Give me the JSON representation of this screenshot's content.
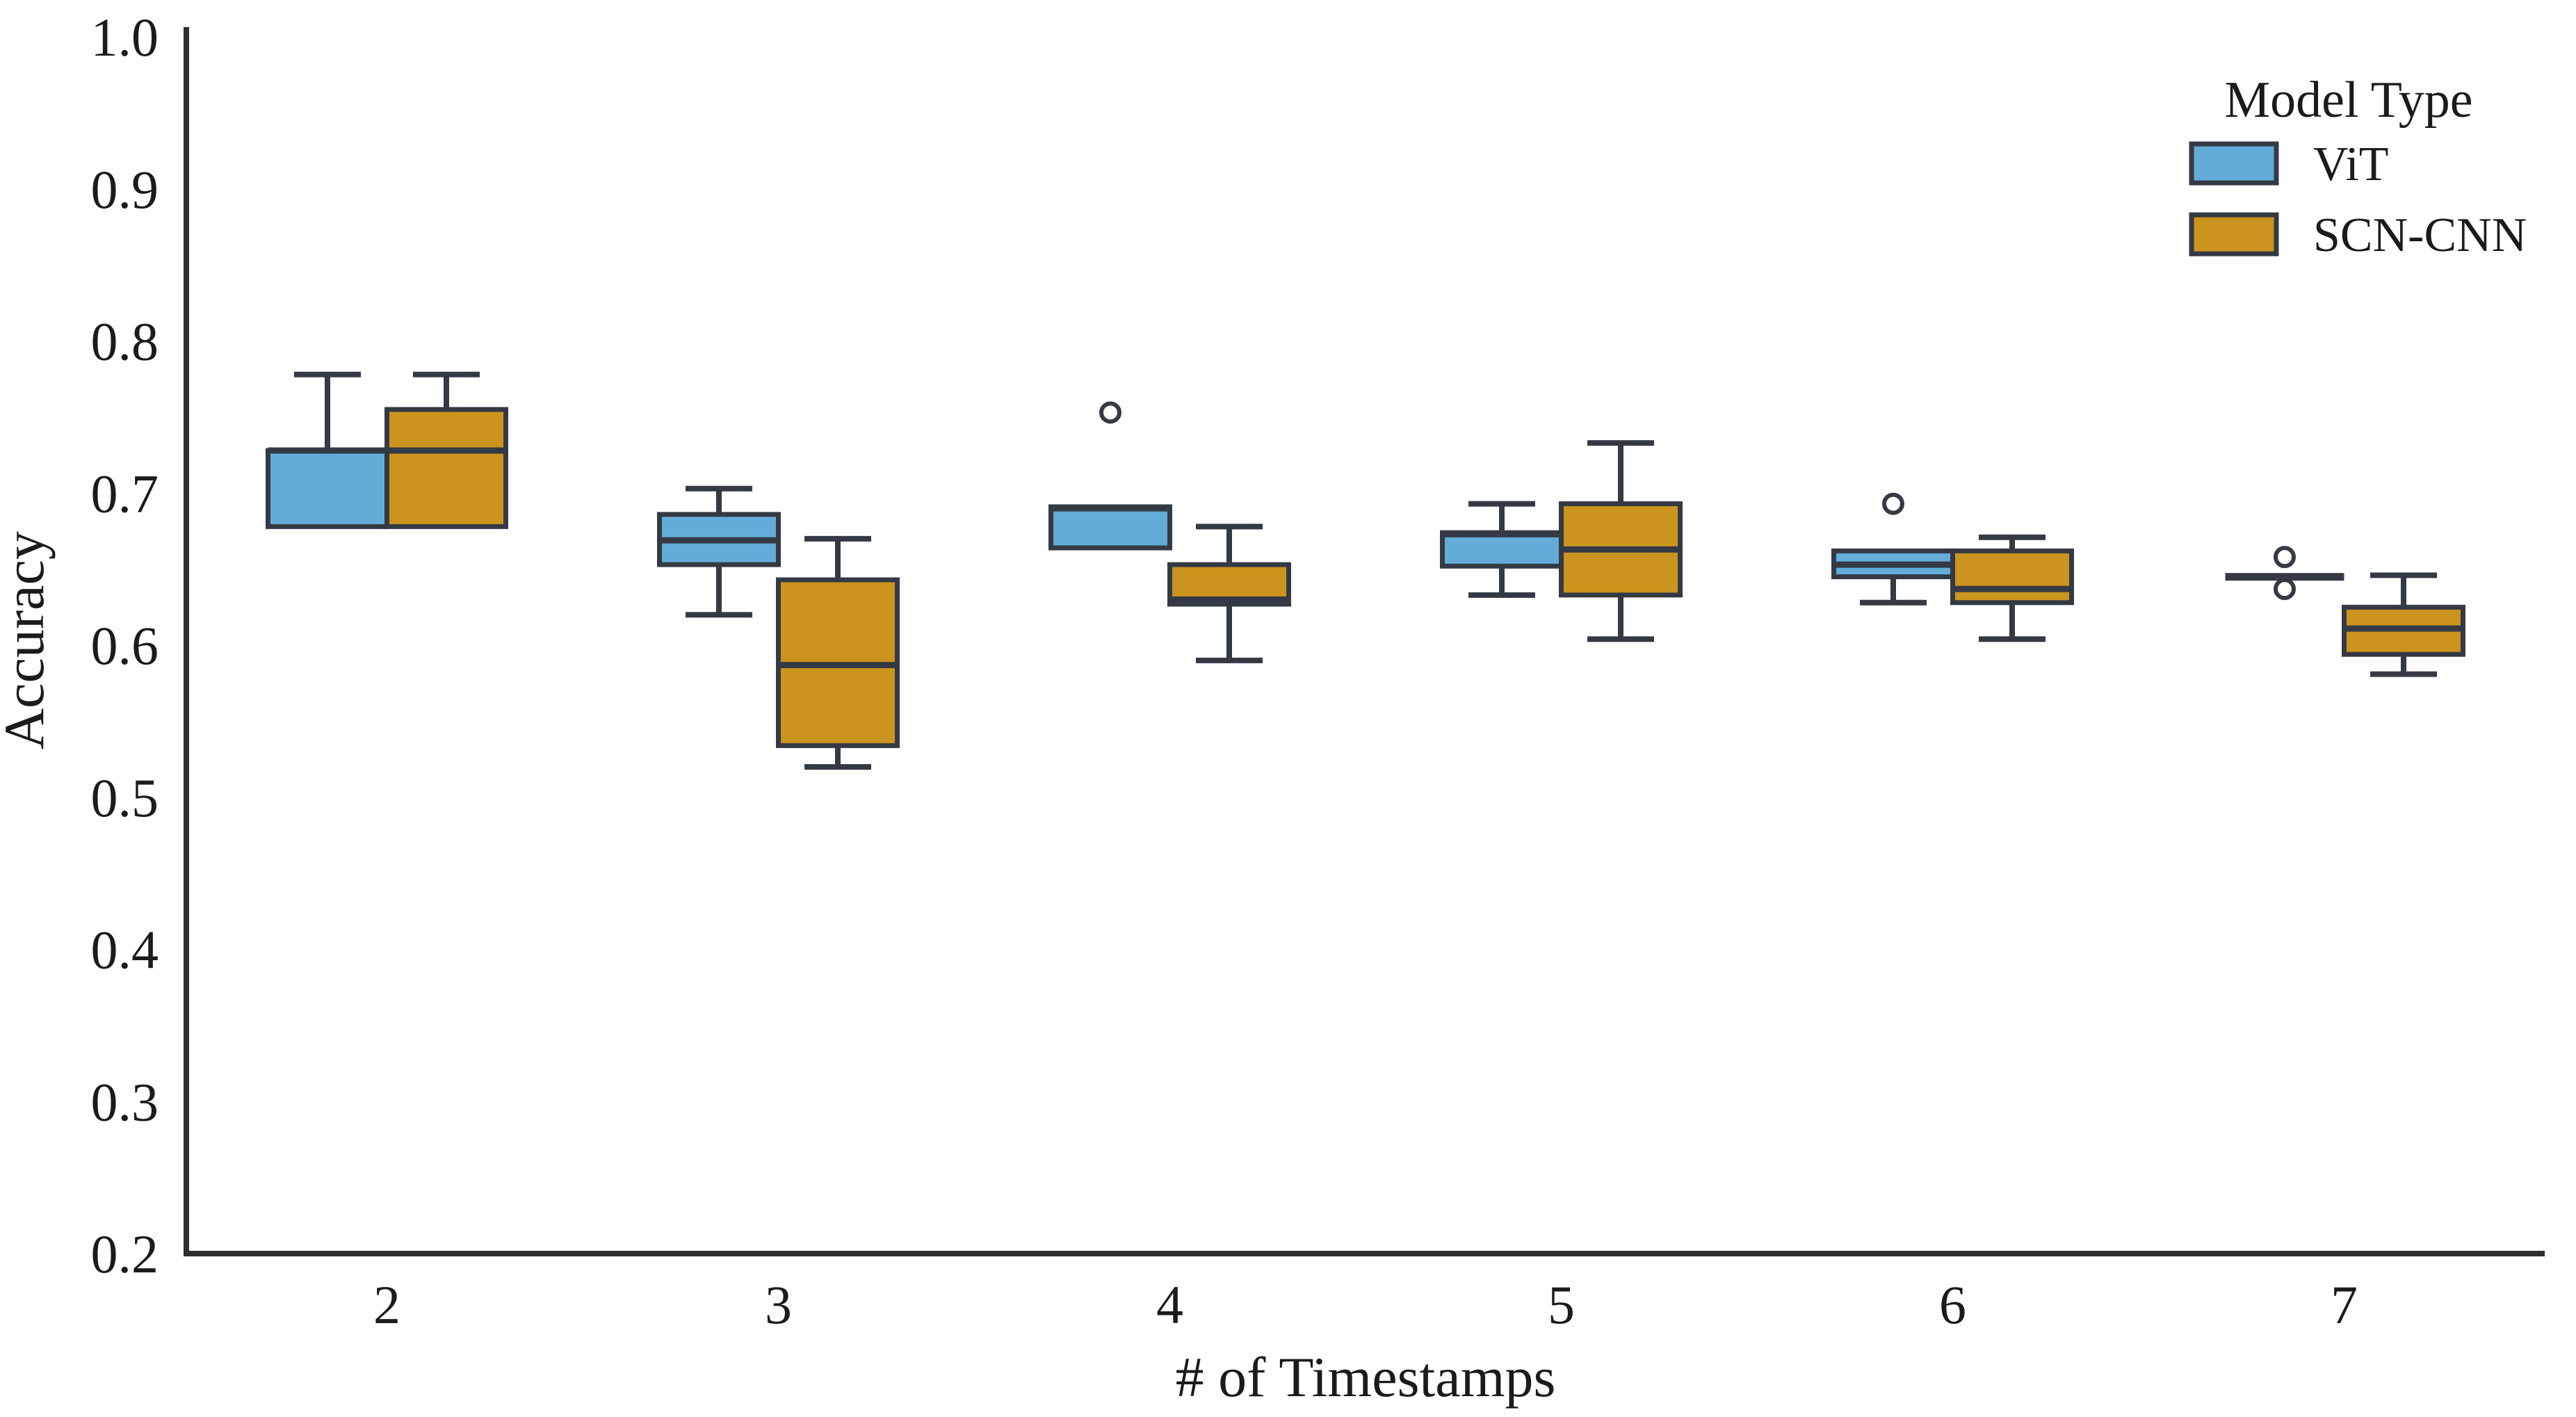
{
  "chart_data": {
    "type": "boxplot",
    "title": "",
    "xlabel": "# of Timestamps",
    "ylabel": "Accuracy",
    "categories": [
      "2",
      "3",
      "4",
      "5",
      "6",
      "7"
    ],
    "y_axis": {
      "min": 0.2,
      "max": 1.0,
      "tick_step": 0.1,
      "ticks": [
        "0.2",
        "0.3",
        "0.4",
        "0.5",
        "0.6",
        "0.7",
        "0.8",
        "0.9",
        "1.0"
      ]
    },
    "grid": "off",
    "legend": {
      "title": "Model Type",
      "position": "upper right"
    },
    "colors": {
      "box_edge": "#343a44",
      "whisker": "#343a44",
      "outlier_fill": "#ffffff",
      "text": "#1b1b1b",
      "background": "#ffffff"
    },
    "series": [
      {
        "name": "ViT",
        "color": "#64acd8",
        "boxes": [
          {
            "category": "2",
            "whislo": 0.678,
            "q1": 0.678,
            "med": 0.728,
            "q3": 0.728,
            "whishi": 0.778,
            "fliers": []
          },
          {
            "category": "3",
            "whislo": 0.62,
            "q1": 0.653,
            "med": 0.669,
            "q3": 0.686,
            "whishi": 0.703,
            "fliers": []
          },
          {
            "category": "4",
            "whislo": 0.664,
            "q1": 0.664,
            "med": 0.69,
            "q3": 0.691,
            "whishi": 0.691,
            "fliers": [
              0.753
            ]
          },
          {
            "category": "5",
            "whislo": 0.633,
            "q1": 0.652,
            "med": 0.673,
            "q3": 0.674,
            "whishi": 0.693,
            "fliers": []
          },
          {
            "category": "6",
            "whislo": 0.628,
            "q1": 0.645,
            "med": 0.653,
            "q3": 0.662,
            "whishi": 0.662,
            "fliers": [
              0.693
            ]
          },
          {
            "category": "7",
            "whislo": 0.645,
            "q1": 0.645,
            "med": 0.645,
            "q3": 0.645,
            "whishi": 0.645,
            "fliers": [
              0.658,
              0.637
            ]
          }
        ]
      },
      {
        "name": "SCN-CNN",
        "color": "#cb941e",
        "boxes": [
          {
            "category": "2",
            "whislo": 0.678,
            "q1": 0.678,
            "med": 0.728,
            "q3": 0.755,
            "whishi": 0.778,
            "fliers": []
          },
          {
            "category": "3",
            "whislo": 0.52,
            "q1": 0.534,
            "med": 0.587,
            "q3": 0.643,
            "whishi": 0.67,
            "fliers": []
          },
          {
            "category": "4",
            "whislo": 0.59,
            "q1": 0.627,
            "med": 0.63,
            "q3": 0.653,
            "whishi": 0.678,
            "fliers": []
          },
          {
            "category": "5",
            "whislo": 0.604,
            "q1": 0.633,
            "med": 0.663,
            "q3": 0.693,
            "whishi": 0.733,
            "fliers": []
          },
          {
            "category": "6",
            "whislo": 0.604,
            "q1": 0.628,
            "med": 0.637,
            "q3": 0.662,
            "whishi": 0.671,
            "fliers": []
          },
          {
            "category": "7",
            "whislo": 0.581,
            "q1": 0.594,
            "med": 0.611,
            "q3": 0.625,
            "whishi": 0.646,
            "fliers": []
          }
        ]
      }
    ]
  }
}
